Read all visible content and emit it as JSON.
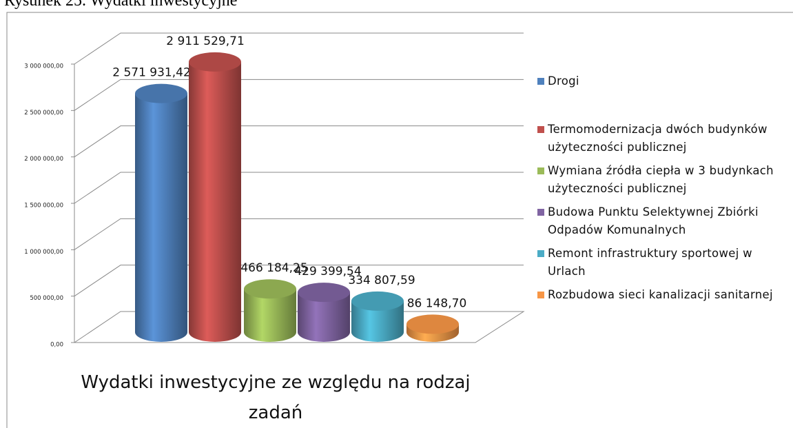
{
  "caption": "Rysunek 25. Wydatki inwestycyjne",
  "chart_data": {
    "type": "bar3d",
    "title": "Wydatki inwestycyjne ze względu na rodzaj zadań",
    "ylim": [
      0,
      3000000
    ],
    "yticks": [
      {
        "value": 0,
        "label": "0,00"
      },
      {
        "value": 500000,
        "label": "500 000,00"
      },
      {
        "value": 1000000,
        "label": "1 000 000,00"
      },
      {
        "value": 1500000,
        "label": "1 500 000,00"
      },
      {
        "value": 2000000,
        "label": "2 000 000,00"
      },
      {
        "value": 2500000,
        "label": "2 500 000,00"
      },
      {
        "value": 3000000,
        "label": "3 000 000,00"
      }
    ],
    "grid": true,
    "legend": "right",
    "series": [
      {
        "name": "Drogi",
        "color": "#4f81bd",
        "values": [
          2571931.42
        ],
        "value_labels": [
          "2 571 931,42"
        ]
      },
      {
        "name": "Termomodernizacja dwóch budynków użyteczności publicznej",
        "color": "#c0504d",
        "values": [
          2911529.71
        ],
        "value_labels": [
          "2 911 529,71"
        ]
      },
      {
        "name": "Wymiana źródła ciepła w 3 budynkach użyteczności publicznej",
        "color": "#9bbb59",
        "values": [
          466184.25
        ],
        "value_labels": [
          "466 184,25"
        ]
      },
      {
        "name": "Budowa Punktu Selektywnej Zbiórki Odpadów Komunalnych",
        "color": "#8064a2",
        "values": [
          429399.54
        ],
        "value_labels": [
          "429 399,54"
        ]
      },
      {
        "name": "Remont infrastruktury sportowej w Urlach",
        "color": "#4bacc6",
        "values": [
          334807.59
        ],
        "value_labels": [
          "334 807,59"
        ]
      },
      {
        "name": "Rozbudowa sieci kanalizacji sanitarnej",
        "color": "#f79646",
        "values": [
          86148.7
        ],
        "value_labels": [
          "86 148,70"
        ]
      }
    ]
  }
}
